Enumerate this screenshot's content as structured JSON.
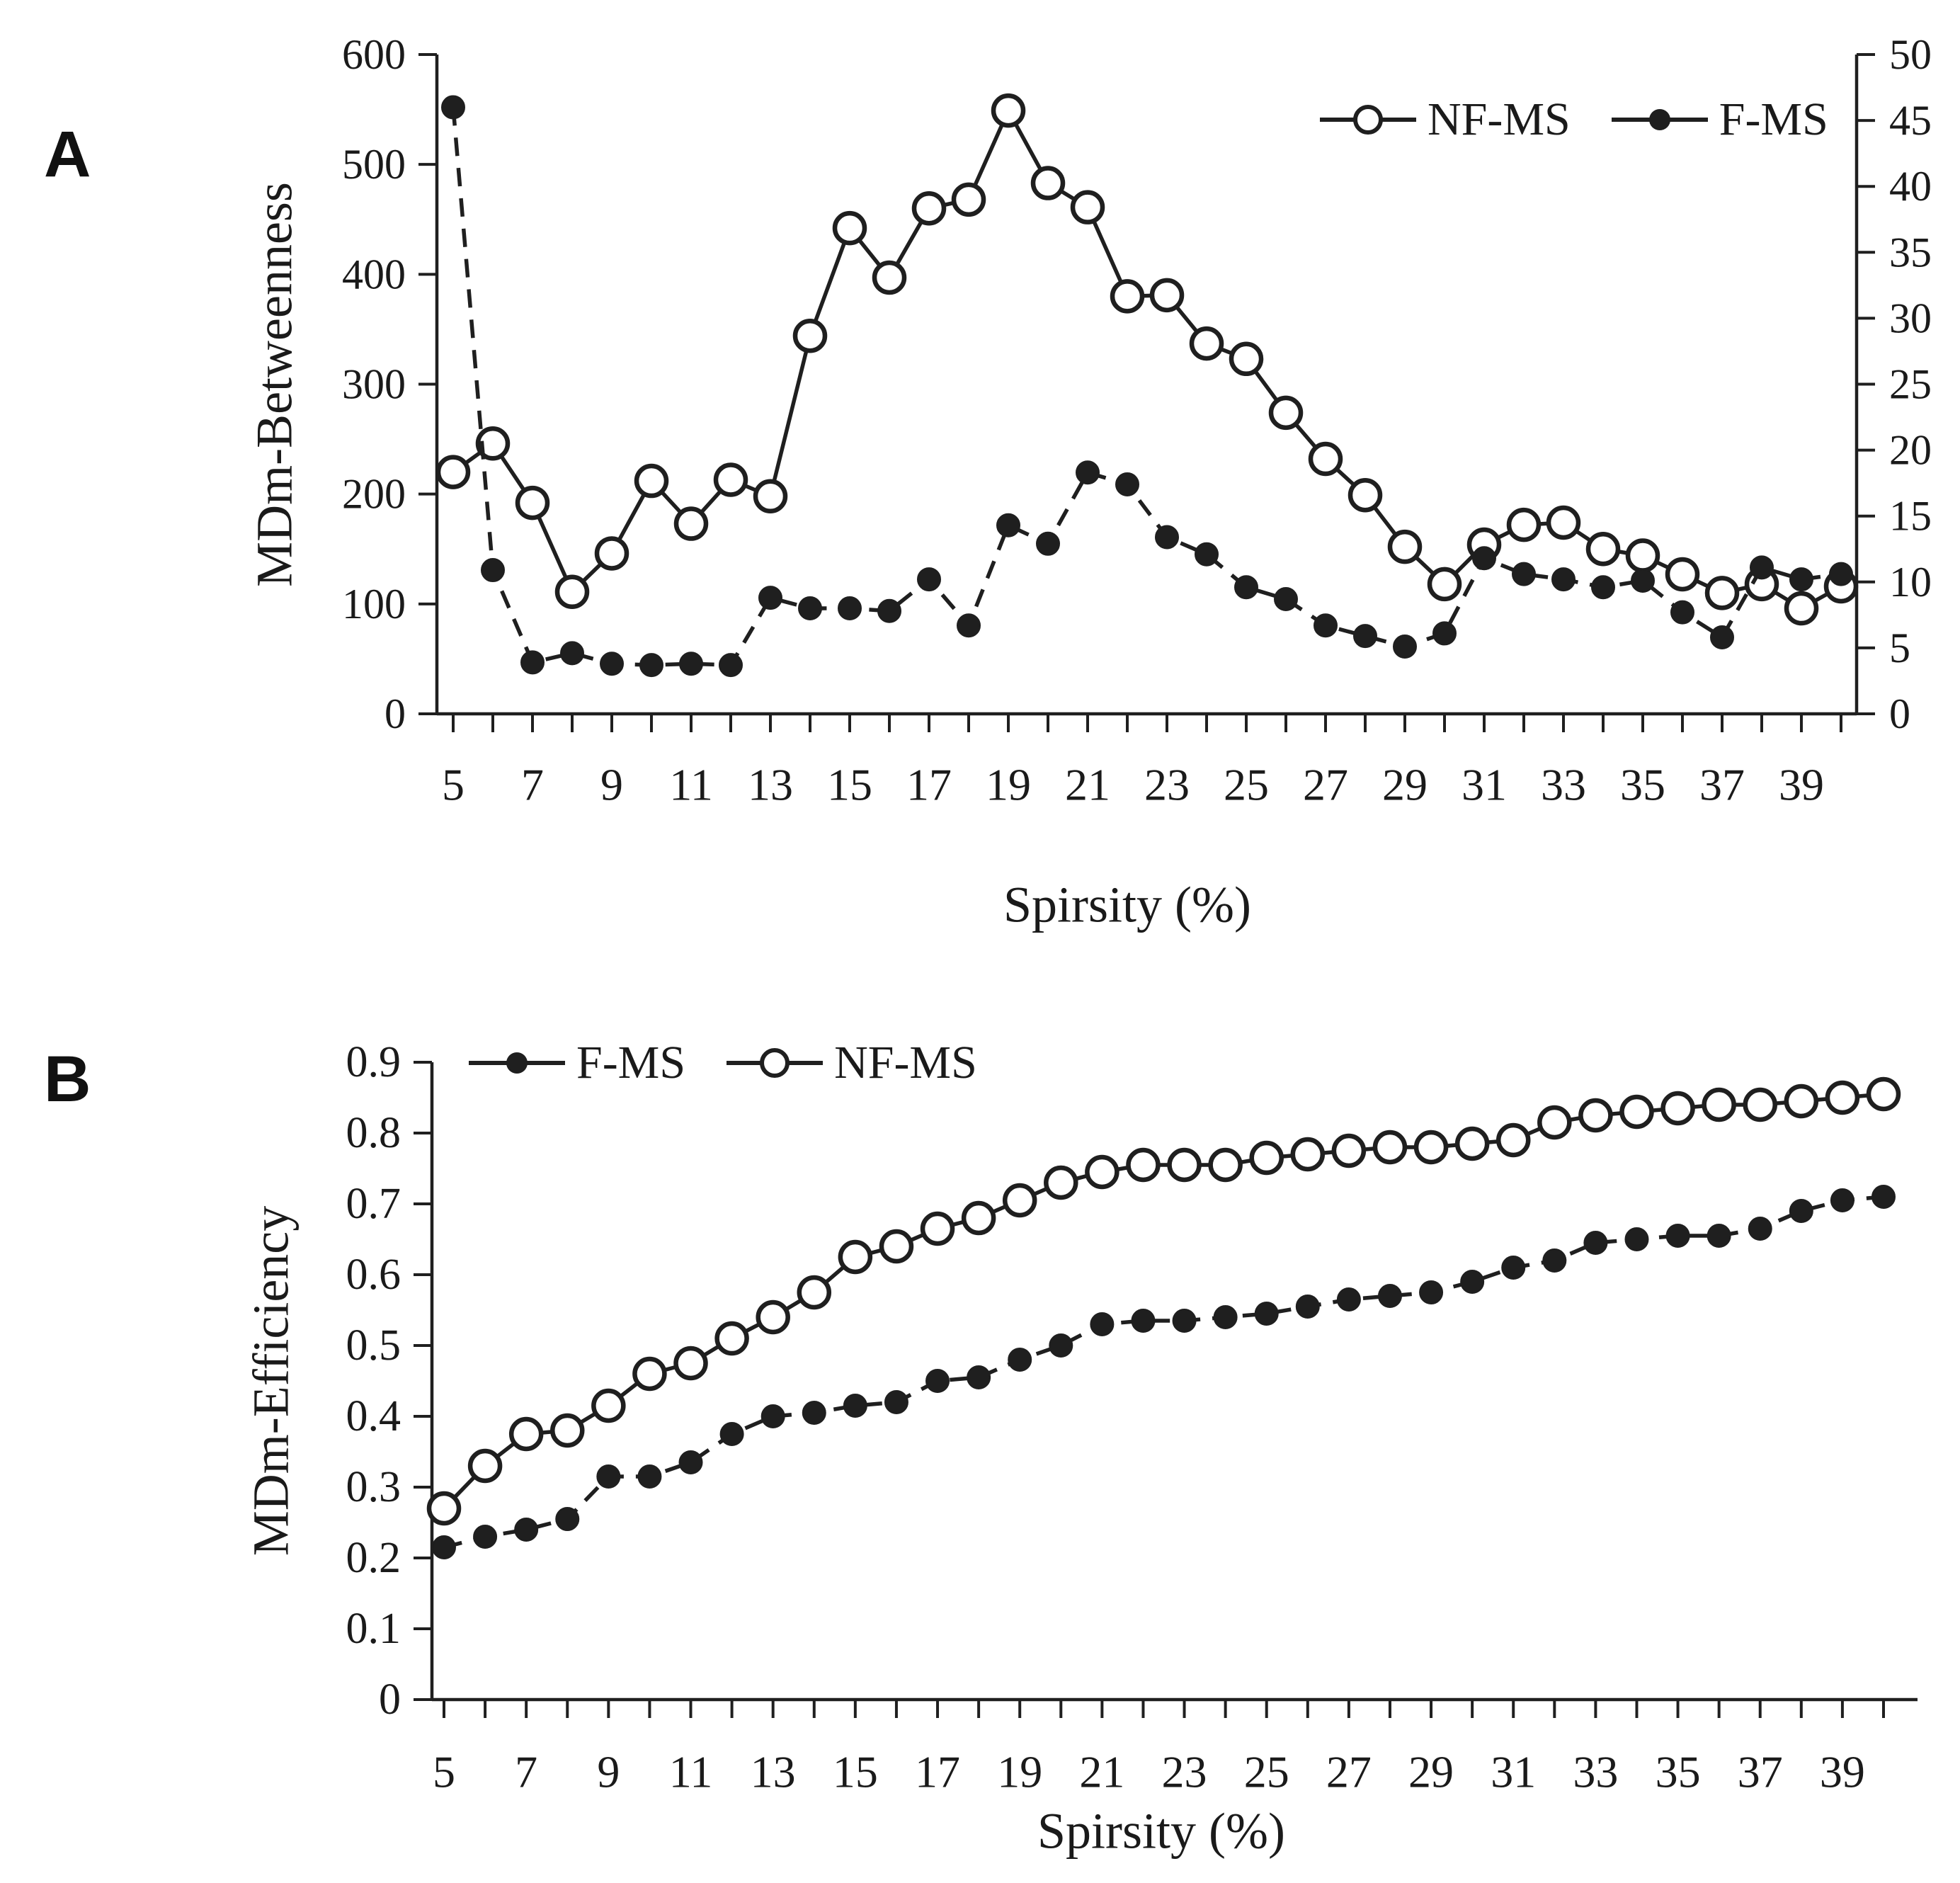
{
  "figure": {
    "background": "#ffffff",
    "line_color": "#1f1f1f",
    "text_color": "#1a1a1a"
  },
  "panels": [
    {
      "label": "A",
      "y_axis_left": {
        "tick_labels": [
          "0",
          "100",
          "200",
          "300",
          "400",
          "500",
          "600"
        ]
      },
      "y_axis_right": {
        "tick_labels": [
          "0",
          "5",
          "10",
          "15",
          "20",
          "25",
          "30",
          "35",
          "40",
          "45",
          "50"
        ]
      },
      "x_axis": {
        "tick_labels": [
          "5",
          "7",
          "9",
          "11",
          "13",
          "15",
          "17",
          "19",
          "21",
          "23",
          "25",
          "27",
          "29",
          "31",
          "33",
          "35",
          "37",
          "39"
        ]
      },
      "legend": {
        "items": [
          {
            "label": "NF-MS",
            "marker": "open-circle"
          },
          {
            "label": "F-MS",
            "marker": "filled-circle"
          }
        ]
      }
    },
    {
      "label": "B",
      "y_axis_left": {
        "tick_labels": [
          "0",
          "0.1",
          "0.2",
          "0.3",
          "0.4",
          "0.5",
          "0.6",
          "0.7",
          "0.8",
          "0.9"
        ]
      },
      "x_axis": {
        "tick_labels": [
          "5",
          "7",
          "9",
          "11",
          "13",
          "15",
          "17",
          "19",
          "21",
          "23",
          "25",
          "27",
          "29",
          "31",
          "33",
          "35",
          "37",
          "39"
        ]
      },
      "legend": {
        "items": [
          {
            "label": "F-MS",
            "marker": "filled-circle"
          },
          {
            "label": "NF-MS",
            "marker": "open-circle"
          }
        ]
      }
    }
  ],
  "chart_data": [
    {
      "type": "line",
      "title": "",
      "xlabel": "Spirsity (%)",
      "ylabel": "MDm-Betweenness",
      "xlim": [
        5,
        40
      ],
      "ylim_left": [
        0,
        600
      ],
      "ylim_right": [
        0,
        50
      ],
      "grid": false,
      "legend_position": "top-right",
      "x": [
        5,
        6,
        7,
        8,
        9,
        10,
        11,
        12,
        13,
        14,
        15,
        16,
        17,
        18,
        19,
        20,
        21,
        22,
        23,
        24,
        25,
        26,
        27,
        28,
        29,
        30,
        31,
        32,
        33,
        34,
        35,
        36,
        37,
        38,
        39,
        40
      ],
      "series": [
        {
          "name": "NF-MS",
          "axis": "left",
          "marker": "open-circle",
          "line": "solid",
          "values": [
            220,
            246,
            192,
            111,
            146,
            212,
            173,
            213,
            198,
            344,
            442,
            397,
            460,
            468,
            549,
            483,
            461,
            380,
            381,
            337,
            323,
            274,
            232,
            199,
            152,
            118,
            154,
            172,
            174,
            150,
            144,
            127,
            110,
            118,
            96,
            116
          ]
        },
        {
          "name": "F-MS",
          "axis": "right",
          "marker": "filled-circle",
          "line": "dashed",
          "values": [
            46.0,
            10.9,
            3.9,
            4.6,
            3.8,
            3.7,
            3.8,
            3.7,
            8.8,
            8.0,
            8.0,
            7.8,
            10.2,
            6.7,
            14.3,
            12.9,
            18.3,
            17.4,
            13.4,
            12.1,
            9.6,
            8.7,
            6.7,
            5.9,
            5.1,
            6.1,
            11.8,
            10.6,
            10.2,
            9.6,
            10.1,
            7.7,
            5.8,
            11.1,
            10.2,
            10.6
          ]
        }
      ]
    },
    {
      "type": "line",
      "title": "",
      "xlabel": "Spirsity (%)",
      "ylabel": "MDm-Efficiency",
      "xlim": [
        5,
        40
      ],
      "ylim_left": [
        0,
        0.9
      ],
      "grid": false,
      "legend_position": "top-left",
      "x": [
        5,
        6,
        7,
        8,
        9,
        10,
        11,
        12,
        13,
        14,
        15,
        16,
        17,
        18,
        19,
        20,
        21,
        22,
        23,
        24,
        25,
        26,
        27,
        28,
        29,
        30,
        31,
        32,
        33,
        34,
        35,
        36,
        37,
        38,
        39,
        40
      ],
      "series": [
        {
          "name": "F-MS",
          "axis": "left",
          "marker": "filled-circle",
          "line": "dashed",
          "values": [
            0.215,
            0.23,
            0.24,
            0.255,
            0.315,
            0.315,
            0.335,
            0.375,
            0.4,
            0.405,
            0.415,
            0.42,
            0.45,
            0.455,
            0.48,
            0.5,
            0.53,
            0.535,
            0.535,
            0.54,
            0.545,
            0.555,
            0.565,
            0.57,
            0.575,
            0.59,
            0.61,
            0.62,
            0.645,
            0.65,
            0.655,
            0.655,
            0.665,
            0.69,
            0.705,
            0.71
          ]
        },
        {
          "name": "NF-MS",
          "axis": "left",
          "marker": "open-circle",
          "line": "solid",
          "values": [
            0.27,
            0.33,
            0.375,
            0.38,
            0.415,
            0.46,
            0.475,
            0.51,
            0.54,
            0.575,
            0.625,
            0.64,
            0.665,
            0.68,
            0.705,
            0.73,
            0.745,
            0.755,
            0.755,
            0.755,
            0.765,
            0.77,
            0.775,
            0.78,
            0.78,
            0.785,
            0.79,
            0.815,
            0.825,
            0.83,
            0.835,
            0.84,
            0.84,
            0.845,
            0.85,
            0.855
          ]
        }
      ]
    }
  ]
}
